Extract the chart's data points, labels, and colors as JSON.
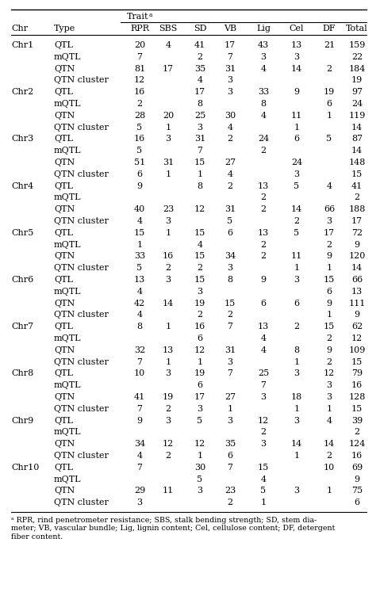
{
  "col_headers": [
    "Chr",
    "Type",
    "RPR",
    "SBS",
    "SD",
    "VB",
    "Lig",
    "Cel",
    "DF",
    "Total"
  ],
  "footnote": "ᵃ RPR, rind penetrometer resistance; SBS, stalk bending strength; SD, stem dia-\nmeter; VB, vascular bundle; Lig, lignin content; Cel, cellulose content; DF, detergent\nfiber content.",
  "rows": [
    [
      "Chr1",
      "QTL",
      "20",
      "4",
      "41",
      "17",
      "43",
      "13",
      "21",
      "159"
    ],
    [
      "",
      "mQTL",
      "7",
      "",
      "2",
      "7",
      "3",
      "3",
      "",
      "22"
    ],
    [
      "",
      "QTN",
      "81",
      "17",
      "35",
      "31",
      "4",
      "14",
      "2",
      "184"
    ],
    [
      "",
      "QTN cluster",
      "12",
      "",
      "4",
      "3",
      "",
      "",
      "",
      "19"
    ],
    [
      "Chr2",
      "QTL",
      "16",
      "",
      "17",
      "3",
      "33",
      "9",
      "19",
      "97"
    ],
    [
      "",
      "mQTL",
      "2",
      "",
      "8",
      "",
      "8",
      "",
      "6",
      "24"
    ],
    [
      "",
      "QTN",
      "28",
      "20",
      "25",
      "30",
      "4",
      "11",
      "1",
      "119"
    ],
    [
      "",
      "QTN cluster",
      "5",
      "1",
      "3",
      "4",
      "",
      "1",
      "",
      "14"
    ],
    [
      "Chr3",
      "QTL",
      "16",
      "3",
      "31",
      "2",
      "24",
      "6",
      "5",
      "87"
    ],
    [
      "",
      "mQTL",
      "5",
      "",
      "7",
      "",
      "2",
      "",
      "",
      "14"
    ],
    [
      "",
      "QTN",
      "51",
      "31",
      "15",
      "27",
      "",
      "24",
      "",
      "148"
    ],
    [
      "",
      "QTN cluster",
      "6",
      "1",
      "1",
      "4",
      "",
      "3",
      "",
      "15"
    ],
    [
      "Chr4",
      "QTL",
      "9",
      "",
      "8",
      "2",
      "13",
      "5",
      "4",
      "41"
    ],
    [
      "",
      "mQTL",
      "",
      "",
      "",
      "",
      "2",
      "",
      "",
      "2"
    ],
    [
      "",
      "QTN",
      "40",
      "23",
      "12",
      "31",
      "2",
      "14",
      "66",
      "188"
    ],
    [
      "",
      "QTN cluster",
      "4",
      "3",
      "",
      "5",
      "",
      "2",
      "3",
      "17"
    ],
    [
      "Chr5",
      "QTL",
      "15",
      "1",
      "15",
      "6",
      "13",
      "5",
      "17",
      "72"
    ],
    [
      "",
      "mQTL",
      "1",
      "",
      "4",
      "",
      "2",
      "",
      "2",
      "9"
    ],
    [
      "",
      "QTN",
      "33",
      "16",
      "15",
      "34",
      "2",
      "11",
      "9",
      "120"
    ],
    [
      "",
      "QTN cluster",
      "5",
      "2",
      "2",
      "3",
      "",
      "1",
      "1",
      "14"
    ],
    [
      "Chr6",
      "QTL",
      "13",
      "3",
      "15",
      "8",
      "9",
      "3",
      "15",
      "66"
    ],
    [
      "",
      "mQTL",
      "4",
      "",
      "3",
      "",
      "",
      "",
      "6",
      "13"
    ],
    [
      "",
      "QTN",
      "42",
      "14",
      "19",
      "15",
      "6",
      "6",
      "9",
      "111"
    ],
    [
      "",
      "QTN cluster",
      "4",
      "",
      "2",
      "2",
      "",
      "",
      "1",
      "9"
    ],
    [
      "Chr7",
      "QTL",
      "8",
      "1",
      "16",
      "7",
      "13",
      "2",
      "15",
      "62"
    ],
    [
      "",
      "mQTL",
      "",
      "",
      "6",
      "",
      "4",
      "",
      "2",
      "12"
    ],
    [
      "",
      "QTN",
      "32",
      "13",
      "12",
      "31",
      "4",
      "8",
      "9",
      "109"
    ],
    [
      "",
      "QTN cluster",
      "7",
      "1",
      "1",
      "3",
      "",
      "1",
      "2",
      "15"
    ],
    [
      "Chr8",
      "QTL",
      "10",
      "3",
      "19",
      "7",
      "25",
      "3",
      "12",
      "79"
    ],
    [
      "",
      "mQTL",
      "",
      "",
      "6",
      "",
      "7",
      "",
      "3",
      "16"
    ],
    [
      "",
      "QTN",
      "41",
      "19",
      "17",
      "27",
      "3",
      "18",
      "3",
      "128"
    ],
    [
      "",
      "QTN cluster",
      "7",
      "2",
      "3",
      "1",
      "",
      "1",
      "1",
      "15"
    ],
    [
      "Chr9",
      "QTL",
      "9",
      "3",
      "5",
      "3",
      "12",
      "3",
      "4",
      "39"
    ],
    [
      "",
      "mQTL",
      "",
      "",
      "",
      "",
      "2",
      "",
      "",
      "2"
    ],
    [
      "",
      "QTN",
      "34",
      "12",
      "12",
      "35",
      "3",
      "14",
      "14",
      "124"
    ],
    [
      "",
      "QTN cluster",
      "4",
      "2",
      "1",
      "6",
      "",
      "1",
      "2",
      "16"
    ],
    [
      "Chr10",
      "QTL",
      "7",
      "",
      "30",
      "7",
      "15",
      "",
      "10",
      "69"
    ],
    [
      "",
      "mQTL",
      "",
      "",
      "5",
      "",
      "4",
      "",
      "",
      "9"
    ],
    [
      "",
      "QTN",
      "29",
      "11",
      "3",
      "23",
      "5",
      "3",
      "1",
      "75"
    ],
    [
      "",
      "QTN cluster",
      "3",
      "",
      "",
      "2",
      "1",
      "",
      "",
      "6"
    ]
  ],
  "figsize": [
    4.74,
    7.52
  ],
  "dpi": 100,
  "fontsize": 8.0,
  "footnote_fontsize": 6.8,
  "header_fontsize": 8.0
}
